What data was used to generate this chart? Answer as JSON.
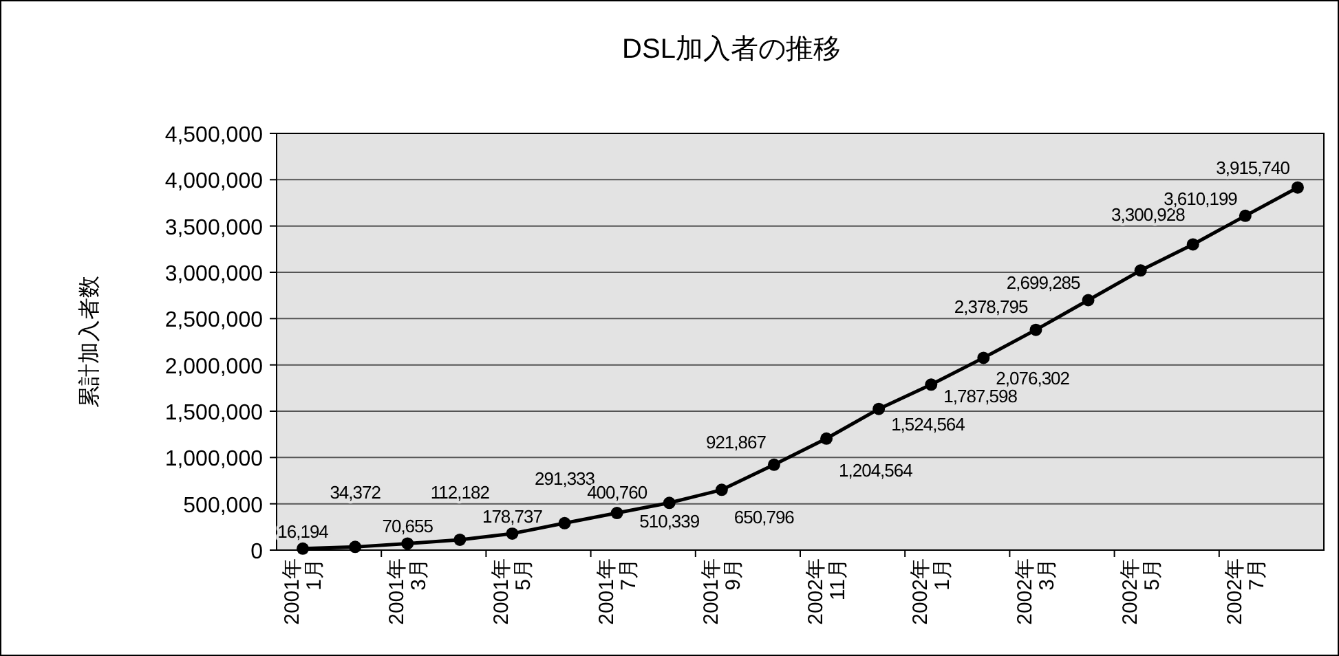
{
  "chart_data": {
    "type": "line",
    "title": "DSL加入者の推移",
    "ylabel": "累計加入者数",
    "categories": [
      "2001年\n1月",
      null,
      "2001年\n3月",
      null,
      "2001年\n5月",
      null,
      "2001年\n7月",
      null,
      "2001年\n9月",
      null,
      "2002年\n11月",
      null,
      "2002年\n1月",
      null,
      "2002年\n3月",
      null,
      "2002年\n5月",
      null,
      "2002年\n7月",
      null
    ],
    "series": [
      {
        "color": "#000000",
        "values": [
          16194,
          34372,
          70655,
          112182,
          178737,
          291333,
          400760,
          510339,
          650796,
          921867,
          1204564,
          1524564,
          1787598,
          2076302,
          2378795,
          2699285,
          3020000,
          3300928,
          3610199,
          3915740
        ],
        "value_labels": [
          "16,194",
          "34,372",
          "70,655",
          "112,182",
          "178,737",
          "291,333",
          "400,760",
          "510,339",
          "650,796",
          "921,867",
          "1,204,564",
          "1,524,564",
          "1,787,598",
          "2,076,302",
          "2,378,795",
          "2,699,285",
          null,
          "3,300,928",
          "3,610,199",
          "3,915,740"
        ]
      }
    ],
    "ylim": [
      0,
      4500000
    ],
    "yticks": [
      {
        "value": 0,
        "label": "0"
      },
      {
        "value": 500000,
        "label": "500,000"
      },
      {
        "value": 1000000,
        "label": "1,000,000"
      },
      {
        "value": 1500000,
        "label": "1,500,000"
      },
      {
        "value": 2000000,
        "label": "2,000,000"
      },
      {
        "value": 2500000,
        "label": "2,500,000"
      },
      {
        "value": 3000000,
        "label": "3,000,000"
      },
      {
        "value": 3500000,
        "label": "3,500,000"
      },
      {
        "value": 4000000,
        "label": "4,000,000"
      },
      {
        "value": 4500000,
        "label": "4,500,000"
      }
    ],
    "grid": "y",
    "marker": "circle",
    "line_style": "solid"
  }
}
